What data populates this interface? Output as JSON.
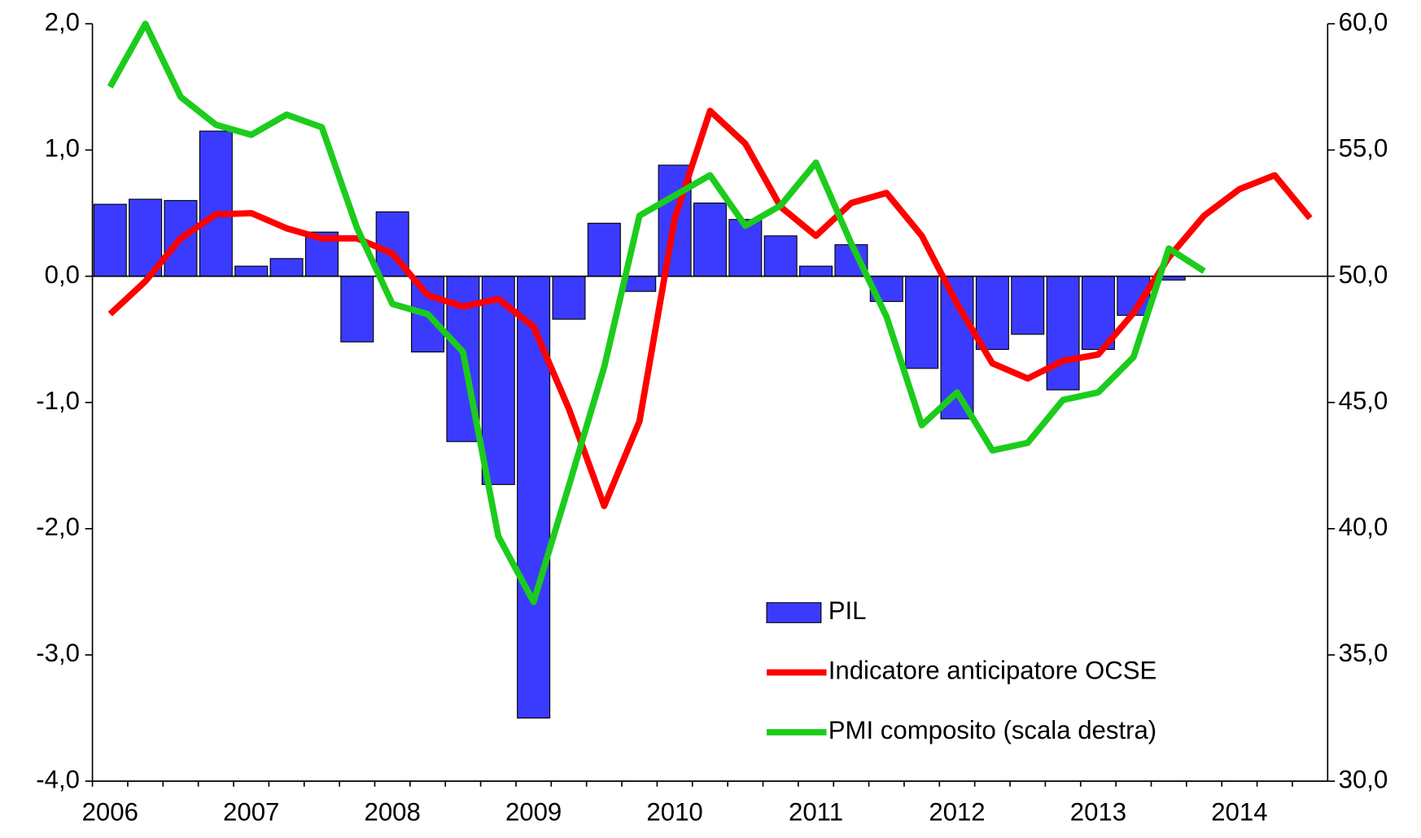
{
  "chart_data": {
    "type": "combo",
    "categories": [
      "2006",
      null,
      null,
      null,
      "2007",
      null,
      null,
      null,
      "2008",
      null,
      null,
      null,
      "2009",
      null,
      null,
      null,
      "2010",
      null,
      null,
      null,
      "2011",
      null,
      null,
      null,
      "2012",
      null,
      null,
      null,
      "2013",
      null,
      null,
      null,
      "2014",
      null,
      null
    ],
    "series": [
      {
        "name": "PIL",
        "type": "bar",
        "color": "#3b3bff",
        "axis": "y",
        "values": [
          0.57,
          0.61,
          0.6,
          1.15,
          0.08,
          0.14,
          0.35,
          -0.52,
          0.51,
          -0.6,
          -1.31,
          -1.65,
          -3.5,
          -0.34,
          0.42,
          -0.12,
          0.88,
          0.58,
          0.45,
          0.32,
          0.08,
          0.25,
          -0.2,
          -0.73,
          -1.13,
          -0.58,
          -0.46,
          -0.9,
          -0.58,
          -0.31,
          -0.03,
          null,
          null,
          null,
          null
        ]
      },
      {
        "name": "Indicatore anticipatore OCSE",
        "type": "line",
        "color": "#ff0000",
        "axis": "y",
        "values": [
          -0.3,
          -0.04,
          0.3,
          0.49,
          0.5,
          0.38,
          0.3,
          0.3,
          0.18,
          -0.15,
          -0.24,
          -0.18,
          -0.4,
          -1.05,
          -1.82,
          -1.15,
          0.46,
          1.31,
          1.05,
          0.55,
          0.32,
          0.58,
          0.66,
          0.32,
          -0.22,
          -0.69,
          -0.81,
          -0.67,
          -0.62,
          -0.29,
          0.15,
          0.48,
          0.69,
          0.8,
          0.46
        ]
      },
      {
        "name": "PMI composito (scala destra)",
        "type": "line",
        "color": "#1ccc1c",
        "axis": "y2",
        "values": [
          57.5,
          60.0,
          57.1,
          56.0,
          55.6,
          56.4,
          55.9,
          51.9,
          48.9,
          48.5,
          47.0,
          39.7,
          37.1,
          41.7,
          46.4,
          52.4,
          53.2,
          54.0,
          52.0,
          52.8,
          54.5,
          51.3,
          48.4,
          44.1,
          45.4,
          43.1,
          43.4,
          45.1,
          45.4,
          46.8,
          51.1,
          50.2,
          null,
          null,
          null
        ]
      }
    ],
    "ylim": [
      -4,
      2
    ],
    "yticks": [
      {
        "value": -4,
        "label": "-4,0"
      },
      {
        "value": -3,
        "label": "-3,0"
      },
      {
        "value": -2,
        "label": "-2,0"
      },
      {
        "value": -1,
        "label": "-1,0"
      },
      {
        "value": 0,
        "label": "0,0"
      },
      {
        "value": 1,
        "label": "1,0"
      },
      {
        "value": 2,
        "label": "2,0"
      }
    ],
    "y2lim": [
      30,
      60
    ],
    "y2ticks": [
      {
        "value": 30,
        "label": "30,0"
      },
      {
        "value": 35,
        "label": "35,0"
      },
      {
        "value": 40,
        "label": "40,0"
      },
      {
        "value": 45,
        "label": "45,0"
      },
      {
        "value": 50,
        "label": "50,0"
      },
      {
        "value": 55,
        "label": "55,0"
      },
      {
        "value": 60,
        "label": "60,0"
      }
    ],
    "grid": false,
    "legend": "lower center"
  }
}
